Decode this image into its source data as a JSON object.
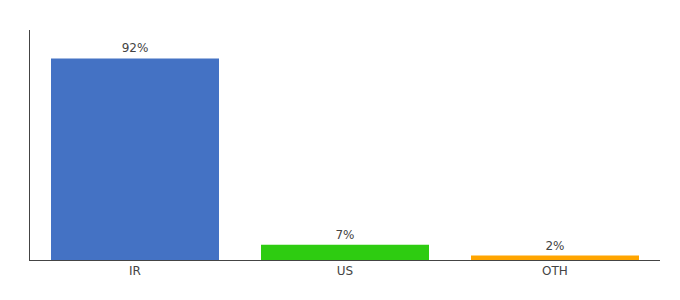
{
  "chart_data": {
    "type": "bar",
    "categories": [
      "IR",
      "US",
      "OTH"
    ],
    "values": [
      92,
      7,
      2
    ],
    "value_labels": [
      "92%",
      "7%",
      "2%"
    ],
    "colors": [
      "#4472C4",
      "#2ECC11",
      "#FFA500"
    ],
    "ylim": [
      0,
      105
    ],
    "yticks": [],
    "data_labels": true,
    "tick_labels": "x",
    "grid": false
  }
}
